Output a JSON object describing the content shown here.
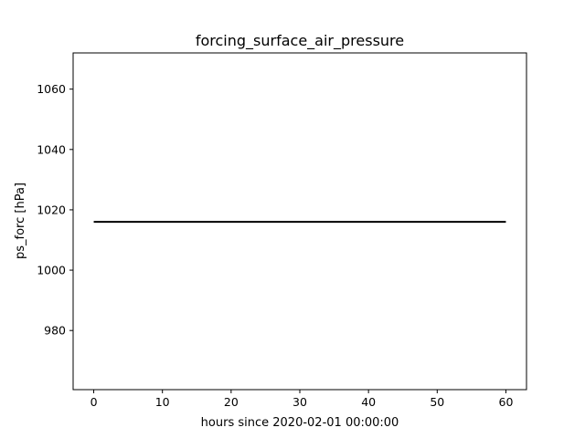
{
  "chart_data": {
    "type": "line",
    "title": "forcing_surface_air_pressure",
    "xlabel": "hours since 2020-02-01 00:00:00",
    "ylabel": "ps_forc [hPa]",
    "xlim": [
      -3,
      63
    ],
    "ylim": [
      960.4,
      1072
    ],
    "x_ticks": [
      0,
      10,
      20,
      30,
      40,
      50,
      60
    ],
    "y_ticks": [
      980,
      1000,
      1020,
      1040,
      1060
    ],
    "grid": false,
    "series": [
      {
        "color": "#000000",
        "x": [
          0,
          60
        ],
        "y": [
          1016,
          1016
        ]
      }
    ]
  }
}
